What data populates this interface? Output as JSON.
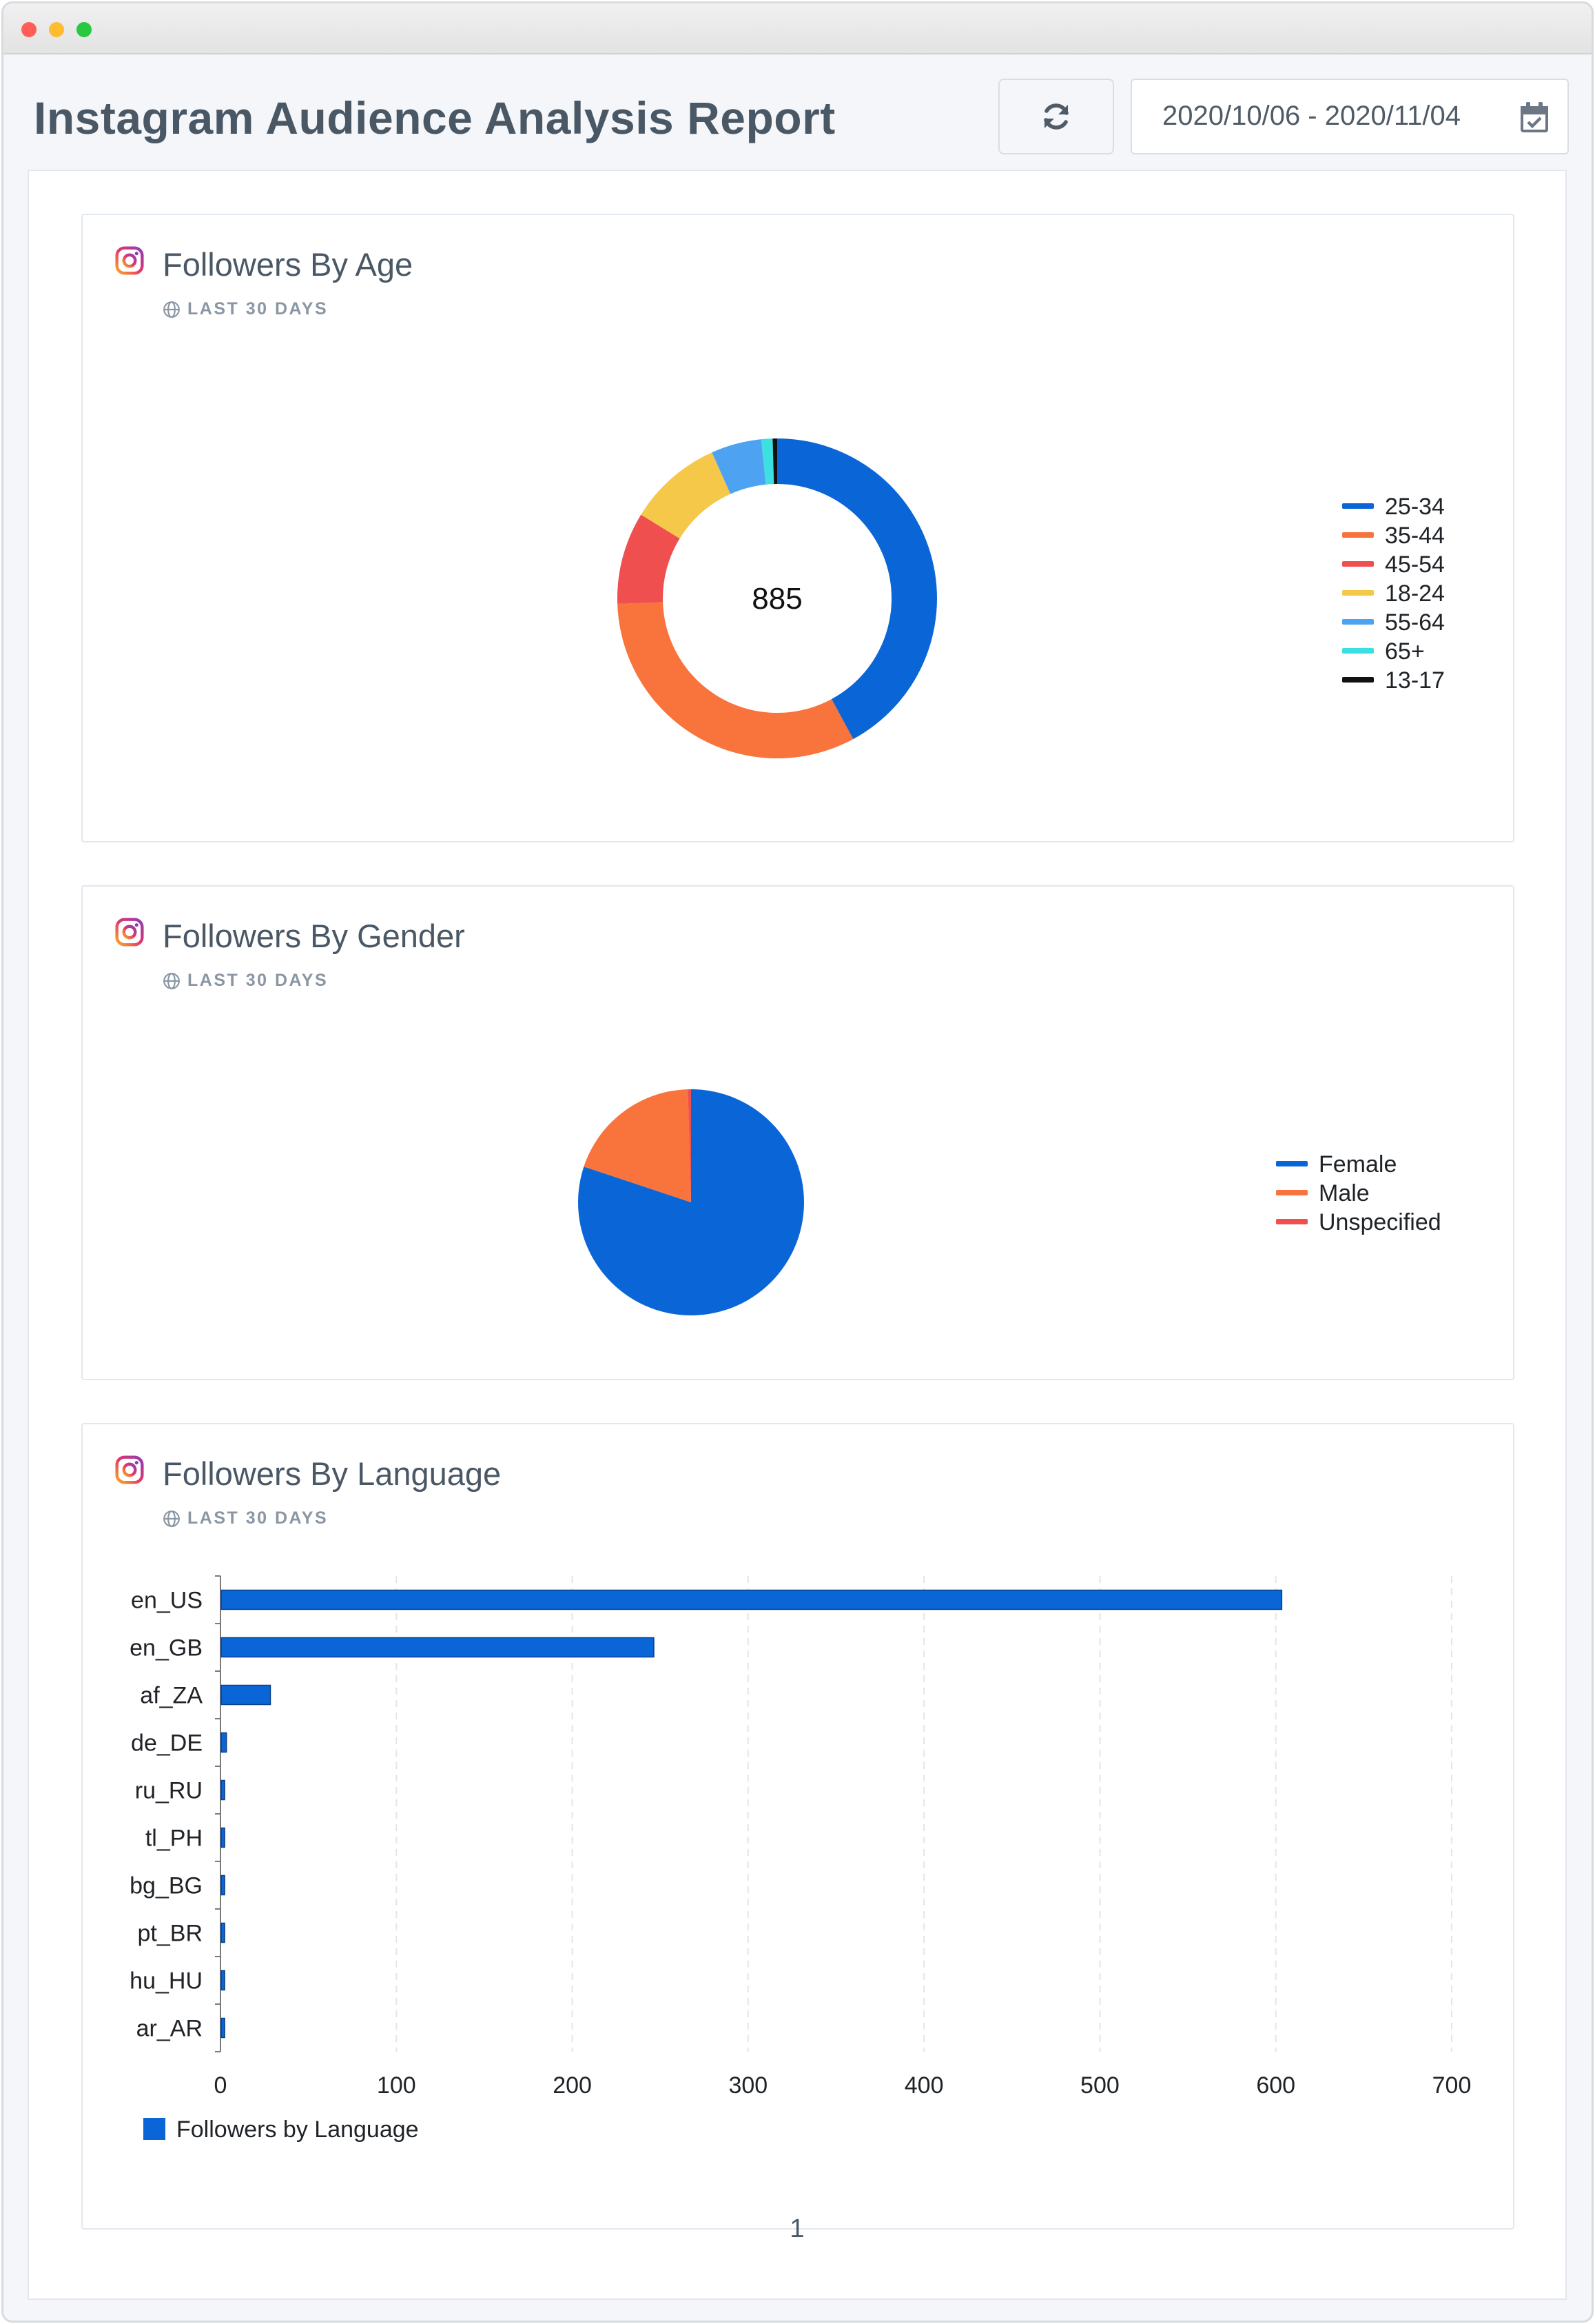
{
  "report": {
    "title": "Instagram Audience Analysis Report",
    "date_range": "2020/10/06 - 2020/11/04",
    "page_number": "1"
  },
  "icons": {
    "refresh": "refresh-icon",
    "calendar": "calendar-check-icon",
    "instagram": "instagram-icon",
    "globe": "globe-icon"
  },
  "cards": {
    "age": {
      "title": "Followers By Age",
      "subtitle": "LAST 30 DAYS"
    },
    "gender": {
      "title": "Followers By Gender",
      "subtitle": "LAST 30 DAYS"
    },
    "language": {
      "title": "Followers By Language",
      "subtitle": "LAST 30 DAYS"
    }
  },
  "chart_data": [
    {
      "type": "pie",
      "variant": "donut",
      "center_label": "885",
      "legend_position": "right",
      "slices": [
        {
          "label": "25-34",
          "value": 371,
          "color": "#0a66d6"
        },
        {
          "label": "35-44",
          "value": 285,
          "color": "#f8743c"
        },
        {
          "label": "45-54",
          "value": 82,
          "color": "#ef4f4f"
        },
        {
          "label": "18-24",
          "value": 84,
          "color": "#f5c84a"
        },
        {
          "label": "55-64",
          "value": 45,
          "color": "#4da3f2"
        },
        {
          "label": "65+",
          "value": 10,
          "color": "#3ce0e0"
        },
        {
          "label": "13-17",
          "value": 4,
          "color": "#111111"
        }
      ]
    },
    {
      "type": "pie",
      "legend_position": "right",
      "slices": [
        {
          "label": "Female",
          "value": 709,
          "color": "#0a66d6"
        },
        {
          "label": "Male",
          "value": 172,
          "color": "#f8743c"
        },
        {
          "label": "Unspecified",
          "value": 4,
          "color": "#ef4f4f"
        }
      ]
    },
    {
      "type": "bar",
      "orientation": "horizontal",
      "categories": [
        "en_US",
        "en_GB",
        "af_ZA",
        "de_DE",
        "ru_RU",
        "tl_PH",
        "bg_BG",
        "pt_BR",
        "hu_HU",
        "ar_AR"
      ],
      "series": [
        {
          "name": "Followers by Language",
          "values": [
            603,
            246,
            28,
            3,
            2,
            2,
            2,
            2,
            2,
            2
          ],
          "color": "#0a66d6"
        }
      ],
      "xlim": [
        0,
        700
      ],
      "xticks": [
        0,
        100,
        200,
        300,
        400,
        500,
        600,
        700
      ],
      "grid": "vertical dashed",
      "legend_position": "bottom-left"
    }
  ]
}
